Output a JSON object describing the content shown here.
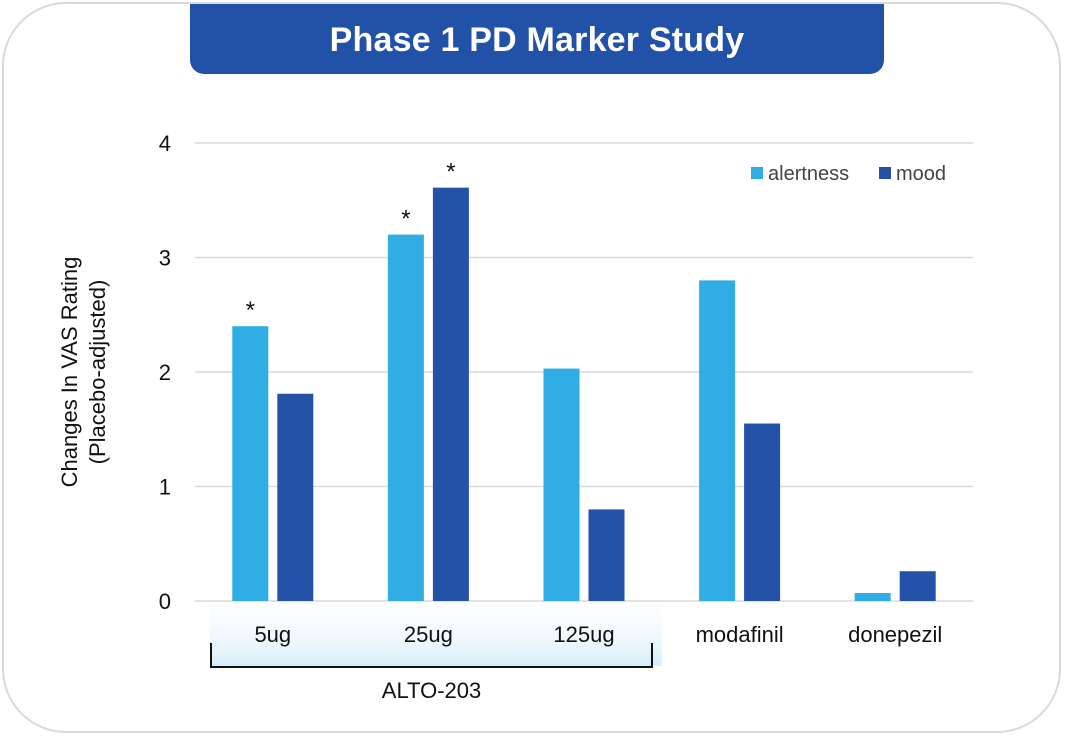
{
  "title": "Phase 1 PD Marker Study",
  "colors": {
    "title_bg": "#2251a8",
    "alertness": "#30ade4",
    "mood": "#2352a8",
    "grid": "#d9d9d9",
    "group_band": "#dff1fb"
  },
  "chart_data": {
    "type": "bar",
    "title": "Phase 1 PD Marker Study",
    "ylabel_line1": "Changes In VAS Rating",
    "ylabel_line2": "(Placebo-adjusted)",
    "xlabel": "",
    "ylim": [
      0,
      4
    ],
    "yticks": [
      "0",
      "1",
      "2",
      "3",
      "4"
    ],
    "categories": [
      "5ug",
      "25ug",
      "125ug",
      "modafinil",
      "donepezil"
    ],
    "group_label": "ALTO-203",
    "group_categories": [
      "5ug",
      "25ug",
      "125ug"
    ],
    "legend_position": "top-right",
    "grid": true,
    "series": [
      {
        "name": "alertness",
        "color": "#30ade4",
        "values": [
          2.4,
          3.2,
          2.03,
          2.8,
          0.07
        ],
        "significant": [
          true,
          true,
          false,
          false,
          false
        ]
      },
      {
        "name": "mood",
        "color": "#2352a8",
        "values": [
          1.81,
          3.61,
          0.8,
          1.55,
          0.26
        ],
        "significant": [
          false,
          true,
          false,
          false,
          false
        ]
      }
    ],
    "significance_marker": "*"
  }
}
